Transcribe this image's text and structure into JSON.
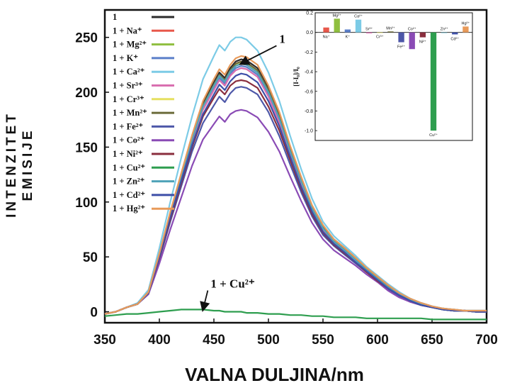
{
  "chart_data": [
    {
      "type": "line",
      "title": "",
      "xlabel": "VALNA DULJINA/nm",
      "ylabel": [
        "INTENZITET",
        "EMISIJE"
      ],
      "xlim": [
        350,
        700
      ],
      "ylim": [
        -10,
        275
      ],
      "xticks": [
        "350",
        "400",
        "450",
        "500",
        "550",
        "600",
        "650",
        "700"
      ],
      "yticks": [
        "0",
        "50",
        "100",
        "150",
        "200",
        "250"
      ],
      "legend_position": "top-left",
      "annotations": [
        {
          "text": "1",
          "x": 510,
          "y": 245,
          "arrow_to": [
            475,
            226
          ]
        },
        {
          "text": "1 + Cu²⁺",
          "x": 447,
          "y": 22,
          "arrow_to": [
            440,
            2
          ]
        }
      ],
      "x": [
        350,
        360,
        370,
        380,
        390,
        400,
        410,
        420,
        430,
        440,
        450,
        455,
        460,
        465,
        470,
        475,
        480,
        490,
        500,
        510,
        520,
        530,
        540,
        550,
        560,
        570,
        580,
        590,
        600,
        610,
        620,
        630,
        640,
        650,
        660,
        670,
        680,
        690,
        700
      ],
      "series": [
        {
          "name": "1",
          "color": "#2b2b2b",
          "values": [
            -2,
            0,
            4,
            7,
            18,
            52,
            90,
            125,
            160,
            190,
            209,
            218,
            213,
            222,
            228,
            230,
            229,
            222,
            204,
            180,
            150,
            122,
            96,
            78,
            66,
            58,
            49,
            40,
            32,
            24,
            17,
            12,
            8,
            5,
            3,
            2,
            1,
            1,
            1
          ]
        },
        {
          "name": "1 + Na⁺",
          "color": "#e8584b",
          "values": [
            -2,
            0,
            4,
            7,
            18,
            52,
            90,
            124,
            158,
            188,
            207,
            216,
            211,
            220,
            226,
            228,
            227,
            220,
            202,
            178,
            148,
            120,
            95,
            77,
            65,
            57,
            48,
            39,
            31,
            23,
            16,
            11,
            7,
            4,
            2,
            1,
            1,
            0,
            0
          ]
        },
        {
          "name": "1 + Mg²⁺",
          "color": "#8fbf3f",
          "values": [
            -2,
            0,
            4,
            7,
            18,
            52,
            89,
            123,
            157,
            186,
            205,
            214,
            209,
            218,
            224,
            226,
            225,
            218,
            200,
            176,
            146,
            119,
            94,
            76,
            64,
            56,
            47,
            38,
            30,
            22,
            16,
            11,
            7,
            4,
            2,
            1,
            1,
            0,
            0
          ]
        },
        {
          "name": "1 + K⁺",
          "color": "#5b7fc9",
          "values": [
            -2,
            0,
            4,
            7,
            18,
            51,
            88,
            122,
            156,
            185,
            204,
            213,
            208,
            217,
            222,
            224,
            223,
            216,
            198,
            174,
            144,
            117,
            92,
            74,
            63,
            55,
            46,
            37,
            29,
            21,
            15,
            10,
            6,
            4,
            2,
            1,
            1,
            0,
            0
          ]
        },
        {
          "name": "1 + Ca²⁺",
          "color": "#7ccbe6",
          "values": [
            -2,
            0,
            4,
            8,
            20,
            58,
            100,
            140,
            178,
            212,
            233,
            243,
            238,
            246,
            250,
            250,
            248,
            238,
            218,
            192,
            160,
            130,
            103,
            82,
            69,
            60,
            51,
            41,
            33,
            25,
            18,
            12,
            8,
            5,
            3,
            2,
            1,
            1,
            1
          ]
        },
        {
          "name": "1 + Sr³⁺",
          "color": "#d96fb0",
          "values": [
            -2,
            0,
            4,
            7,
            18,
            51,
            88,
            121,
            155,
            184,
            202,
            211,
            206,
            215,
            220,
            222,
            221,
            214,
            196,
            172,
            143,
            116,
            91,
            74,
            62,
            54,
            45,
            37,
            29,
            21,
            15,
            10,
            6,
            4,
            2,
            1,
            1,
            0,
            0
          ]
        },
        {
          "name": "1 + Cr³⁺",
          "color": "#e6e060",
          "values": [
            -2,
            0,
            4,
            7,
            18,
            52,
            89,
            123,
            157,
            187,
            206,
            215,
            210,
            219,
            225,
            227,
            226,
            219,
            201,
            177,
            147,
            119,
            94,
            76,
            64,
            56,
            47,
            38,
            30,
            22,
            16,
            11,
            7,
            4,
            2,
            1,
            1,
            0,
            0
          ]
        },
        {
          "name": "1 + Mn²⁺",
          "color": "#6b6b3a",
          "values": [
            -2,
            0,
            4,
            7,
            18,
            52,
            90,
            124,
            158,
            188,
            207,
            216,
            211,
            220,
            226,
            228,
            227,
            220,
            202,
            178,
            148,
            120,
            95,
            77,
            65,
            57,
            48,
            39,
            31,
            23,
            16,
            11,
            7,
            4,
            2,
            1,
            1,
            0,
            0
          ]
        },
        {
          "name": "1 + Fe²⁺",
          "color": "#4d57a8",
          "values": [
            -2,
            0,
            4,
            7,
            17,
            48,
            82,
            114,
            146,
            172,
            188,
            196,
            191,
            199,
            204,
            205,
            204,
            198,
            182,
            160,
            134,
            109,
            87,
            70,
            60,
            52,
            44,
            36,
            28,
            20,
            14,
            9,
            6,
            4,
            2,
            1,
            1,
            0,
            0
          ]
        },
        {
          "name": "1 + Co²⁺",
          "color": "#8a4bb5",
          "values": [
            -2,
            0,
            4,
            7,
            16,
            44,
            75,
            104,
            133,
            157,
            171,
            178,
            173,
            180,
            183,
            184,
            183,
            177,
            164,
            146,
            123,
            101,
            81,
            66,
            56,
            49,
            42,
            34,
            27,
            19,
            13,
            9,
            6,
            4,
            2,
            1,
            1,
            0,
            0
          ]
        },
        {
          "name": "1 + Ni²⁺",
          "color": "#8a2e3e",
          "values": [
            -2,
            0,
            4,
            7,
            17,
            49,
            84,
            117,
            150,
            178,
            195,
            203,
            198,
            206,
            210,
            211,
            210,
            204,
            187,
            165,
            138,
            112,
            89,
            72,
            61,
            53,
            45,
            36,
            28,
            21,
            15,
            10,
            6,
            4,
            2,
            1,
            1,
            0,
            0
          ]
        },
        {
          "name": "1 + Cu²⁺",
          "color": "#2e9e4f",
          "values": [
            -4,
            -3,
            -2,
            -2,
            -1,
            0,
            1,
            2,
            2,
            2,
            1,
            1,
            0,
            0,
            0,
            0,
            -1,
            -1,
            -2,
            -2,
            -3,
            -3,
            -4,
            -4,
            -5,
            -5,
            -5,
            -6,
            -6,
            -6,
            -6,
            -6,
            -6,
            -7,
            -7,
            -7,
            -7,
            -7,
            -7
          ]
        },
        {
          "name": "1 + Zn²⁺",
          "color": "#4fa3b8",
          "values": [
            -2,
            0,
            4,
            7,
            18,
            52,
            89,
            123,
            157,
            187,
            206,
            215,
            210,
            219,
            224,
            226,
            225,
            218,
            200,
            176,
            146,
            119,
            94,
            76,
            64,
            56,
            47,
            38,
            30,
            22,
            16,
            11,
            7,
            4,
            2,
            1,
            1,
            0,
            0
          ]
        },
        {
          "name": "1 + Cd²⁺",
          "color": "#3d4fa8",
          "values": [
            -2,
            0,
            4,
            7,
            17,
            50,
            86,
            119,
            152,
            180,
            198,
            207,
            202,
            210,
            215,
            217,
            216,
            209,
            192,
            169,
            141,
            114,
            91,
            73,
            62,
            54,
            45,
            37,
            29,
            21,
            15,
            10,
            6,
            4,
            2,
            1,
            1,
            0,
            0
          ]
        },
        {
          "name": "1 + Hg²⁺",
          "color": "#e89a5a",
          "values": [
            -2,
            0,
            4,
            7,
            18,
            53,
            91,
            126,
            161,
            192,
            212,
            221,
            216,
            225,
            231,
            233,
            232,
            225,
            206,
            182,
            151,
            123,
            97,
            79,
            66,
            58,
            49,
            40,
            32,
            24,
            17,
            12,
            8,
            5,
            3,
            2,
            1,
            1,
            1
          ]
        }
      ]
    },
    {
      "type": "bar",
      "title": "",
      "ylabel": "[I-I₀]/I₀",
      "ylim": [
        -1.1,
        0.2
      ],
      "yticks": [
        "0.2",
        "0.0",
        "-0.2",
        "-0.4",
        "-0.6",
        "-0.8",
        "-1.0"
      ],
      "categories": [
        "Na⁺",
        "Mg²⁺",
        "K⁺",
        "Ca²⁺",
        "Sr³⁺",
        "Cr³⁺",
        "Mn²⁺",
        "Fe²⁺",
        "Co²⁺",
        "Ni²⁺",
        "Cu²⁺",
        "Zn²⁺",
        "Cd²⁺",
        "Hg²⁺"
      ],
      "label_side": [
        "below",
        "above",
        "below",
        "above",
        "above",
        "below",
        "above",
        "below",
        "above",
        "below",
        "below",
        "above",
        "below",
        "above"
      ],
      "values": [
        0.05,
        0.14,
        0.03,
        0.13,
        -0.01,
        0.0,
        0.01,
        -0.1,
        -0.17,
        -0.05,
        -1.0,
        0.0,
        -0.02,
        0.06
      ],
      "colors": [
        "#e8584b",
        "#8fbf3f",
        "#5b7fc9",
        "#7ccbe6",
        "#d96fb0",
        "#e6e060",
        "#6b6b3a",
        "#4d57a8",
        "#8a4bb5",
        "#8a2e3e",
        "#2e9e4f",
        "#4fa3b8",
        "#3d4fa8",
        "#e89a5a"
      ]
    }
  ]
}
